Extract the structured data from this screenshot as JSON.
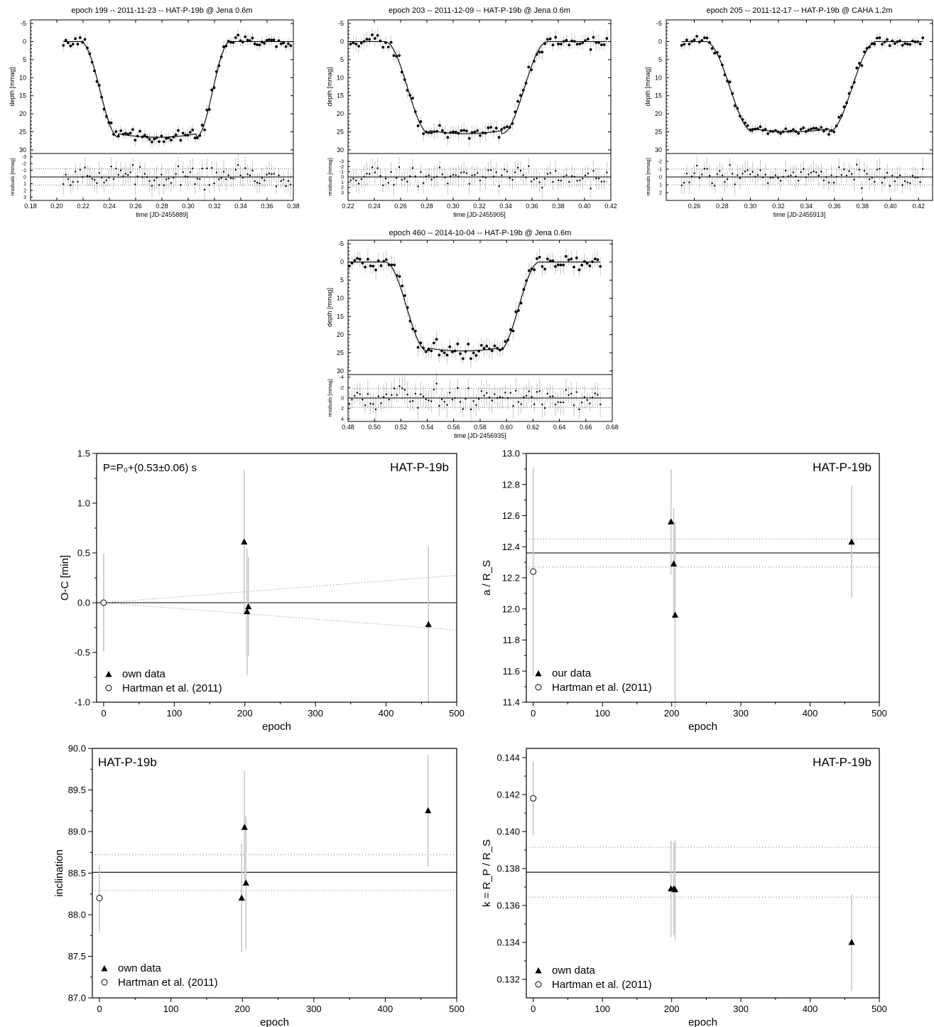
{
  "chart_data": [
    {
      "type": "scatter",
      "title": "epoch 199 -- 2011-11-23 -- HAT-P-19b @ Jena 0.6m",
      "xlabel": "time [JD-2455889]",
      "ylabel": "depth [mmag]",
      "residual_ylabel": "residuals [mmag]",
      "xlim": [
        0.18,
        0.38
      ],
      "ylim": [
        -6,
        31
      ],
      "residual_ylim": [
        -3.5,
        3.5
      ],
      "residual_band": 1.2,
      "xticks": [
        "0.18",
        "0.20",
        "0.22",
        "0.24",
        "0.26",
        "0.28",
        "0.30",
        "0.32",
        "0.34",
        "0.36",
        "0.38"
      ],
      "yticks": [
        "-5",
        "0",
        "5",
        "10",
        "15",
        "20",
        "25",
        "30"
      ],
      "residual_yticks": [
        "-3",
        "-2",
        "-1",
        "0",
        "1",
        "2",
        "3"
      ],
      "data_range": [
        0.205,
        0.378
      ],
      "transit": {
        "t1": 0.218,
        "t2": 0.247,
        "t3": 0.306,
        "t4": 0.332,
        "depth": 26.5
      },
      "grid": false
    },
    {
      "type": "scatter",
      "title": "epoch 203 -- 2011-12-09 -- HAT-P-19b @ Jena 0.6m",
      "xlabel": "time [JD-2455905]",
      "ylabel": "depth [mmag]",
      "residual_ylabel": "residuals [mmag]",
      "xlim": [
        0.22,
        0.42
      ],
      "ylim": [
        -6,
        31
      ],
      "residual_ylim": [
        -4.5,
        4.5
      ],
      "residual_band": 1.5,
      "xticks": [
        "0.22",
        "0.24",
        "0.26",
        "0.28",
        "0.30",
        "0.32",
        "0.34",
        "0.36",
        "0.38",
        "0.40",
        "0.42"
      ],
      "yticks": [
        "-5",
        "0",
        "5",
        "10",
        "15",
        "20",
        "25",
        "30"
      ],
      "residual_yticks": [
        "-3",
        "-2",
        "-1",
        "0",
        "1",
        "2",
        "3"
      ],
      "data_range": [
        0.222,
        0.417
      ],
      "transit": {
        "t1": 0.248,
        "t2": 0.282,
        "t3": 0.337,
        "t4": 0.372,
        "depth": 25.5
      },
      "grid": false
    },
    {
      "type": "scatter",
      "title": "epoch 205 -- 2011-12-17 -- HAT-P-19b @ CAHA 1.2m",
      "xlabel": "time [JD-2455913]",
      "ylabel": "depth [mmag]",
      "residual_ylabel": "residuals [mmag]",
      "xlim": [
        0.24,
        0.43
      ],
      "ylim": [
        -6,
        31
      ],
      "residual_ylim": [
        -3,
        3
      ],
      "residual_band": 1.0,
      "xticks": [
        "0.26",
        "0.28",
        "0.30",
        "0.32",
        "0.34",
        "0.36",
        "0.38",
        "0.40",
        "0.42"
      ],
      "yticks": [
        "-5",
        "0",
        "5",
        "10",
        "15",
        "20",
        "25",
        "30"
      ],
      "residual_yticks": [
        "-2",
        "-1",
        "0",
        "1",
        "2"
      ],
      "data_range": [
        0.251,
        0.423
      ],
      "transit": {
        "t1": 0.268,
        "t2": 0.302,
        "t3": 0.356,
        "t4": 0.39,
        "depth": 25.0
      },
      "grid": false
    },
    {
      "type": "scatter",
      "title": "epoch 460 -- 2014-10-04 -- HAT-P-19b @ Jena 0.6m",
      "xlabel": "time [JD-2456935]",
      "ylabel": "depth [mmag]",
      "residual_ylabel": "residuals [mmag]",
      "xlim": [
        0.48,
        0.68
      ],
      "ylim": [
        -6,
        31
      ],
      "residual_ylim": [
        -4.5,
        4.5
      ],
      "residual_band": 1.8,
      "xticks": [
        "0.48",
        "0.50",
        "0.52",
        "0.54",
        "0.56",
        "0.58",
        "0.60",
        "0.62",
        "0.64",
        "0.66",
        "0.68"
      ],
      "yticks": [
        "-5",
        "0",
        "5",
        "10",
        "15",
        "20",
        "25",
        "30"
      ],
      "residual_yticks": [
        "-4",
        "-2",
        "0",
        "2",
        "4"
      ],
      "data_range": [
        0.481,
        0.671
      ],
      "transit": {
        "t1": 0.508,
        "t2": 0.54,
        "t3": 0.594,
        "t4": 0.625,
        "depth": 24.5
      },
      "grid": false
    },
    {
      "type": "scatter",
      "title": "",
      "object_label": "HAT-P-19b",
      "note": "P=P₀+(0.53±0.06) s",
      "xlabel": "epoch",
      "ylabel": "O-C [min]",
      "xlim": [
        -10,
        500
      ],
      "ylim": [
        -1.0,
        1.5
      ],
      "xticks": [
        0,
        100,
        200,
        300,
        400,
        500
      ],
      "yticks": [
        "-1.0",
        "-0.5",
        "0.0",
        "0.5",
        "1.0",
        "1.5"
      ],
      "fit": {
        "type": "linear",
        "value": 0.0,
        "band_slope": 0.00055
      },
      "series": [
        {
          "name": "own data",
          "marker": "triangle",
          "points": [
            {
              "x": 199,
              "y": 0.61,
              "err": 0.72
            },
            {
              "x": 203,
              "y": -0.09,
              "err": 0.64
            },
            {
              "x": 205,
              "y": -0.04,
              "err": 0.5
            },
            {
              "x": 460,
              "y": -0.22,
              "err": 0.79
            }
          ]
        },
        {
          "name": "Hartman et al. (2011)",
          "marker": "circle",
          "points": [
            {
              "x": 0,
              "y": 0.0,
              "err": 0.49
            }
          ]
        }
      ],
      "legend": "bottom-left",
      "grid": false
    },
    {
      "type": "scatter",
      "title": "",
      "object_label": "HAT-P-19b",
      "xlabel": "epoch",
      "ylabel": "a / R_S",
      "xlim": [
        -10,
        500
      ],
      "ylim": [
        11.4,
        13.0
      ],
      "xticks": [
        0,
        100,
        200,
        300,
        400,
        500
      ],
      "yticks": [
        "11.4",
        "11.6",
        "11.8",
        "12.0",
        "12.2",
        "12.4",
        "12.6",
        "12.8",
        "13.0"
      ],
      "fit": {
        "type": "constant",
        "value": 12.36,
        "band": [
          12.27,
          12.45
        ]
      },
      "series": [
        {
          "name": "our data",
          "marker": "triangle",
          "points": [
            {
              "x": 199,
              "y": 12.56,
              "err": 0.34
            },
            {
              "x": 203,
              "y": 12.29,
              "err": 0.36
            },
            {
              "x": 205,
              "y": 11.96,
              "err": 0.6
            },
            {
              "x": 460,
              "y": 12.43,
              "err": 0.36
            }
          ]
        },
        {
          "name": "Hartman et al. (2011)",
          "marker": "circle",
          "points": [
            {
              "x": 0,
              "y": 12.24,
              "err": 0.67
            }
          ]
        }
      ],
      "legend": "bottom-left",
      "grid": false
    },
    {
      "type": "scatter",
      "title": "",
      "object_label": "HAT-P-19b",
      "xlabel": "epoch",
      "ylabel": "inclination",
      "xlim": [
        -10,
        500
      ],
      "ylim": [
        87.0,
        90.0
      ],
      "xticks": [
        0,
        100,
        200,
        300,
        400,
        500
      ],
      "yticks": [
        "87.0",
        "87.5",
        "88.0",
        "88.5",
        "89.0",
        "89.5",
        "90.0"
      ],
      "fit": {
        "type": "constant",
        "value": 88.51,
        "band": [
          88.29,
          88.72
        ]
      },
      "series": [
        {
          "name": "own data",
          "marker": "triangle",
          "points": [
            {
              "x": 199,
              "y": 88.2,
              "err": 0.65
            },
            {
              "x": 203,
              "y": 89.05,
              "err": 0.68
            },
            {
              "x": 205,
              "y": 88.38,
              "err": 0.8
            },
            {
              "x": 460,
              "y": 89.25,
              "err": 0.67
            }
          ]
        },
        {
          "name": "Hartman et al. (2011)",
          "marker": "circle",
          "points": [
            {
              "x": 0,
              "y": 88.2,
              "err": 0.4
            }
          ]
        }
      ],
      "legend": "bottom-left",
      "grid": false
    },
    {
      "type": "scatter",
      "title": "",
      "object_label": "HAT-P-19b",
      "xlabel": "epoch",
      "ylabel": "k = R_P / R_S",
      "xlim": [
        -10,
        500
      ],
      "ylim": [
        0.131,
        0.1445
      ],
      "xticks": [
        0,
        100,
        200,
        300,
        400,
        500
      ],
      "yticks": [
        "0.132",
        "0.134",
        "0.136",
        "0.138",
        "0.140",
        "0.142",
        "0.144"
      ],
      "fit": {
        "type": "constant",
        "value": 0.1378,
        "band": [
          0.13645,
          0.13915
        ]
      },
      "series": [
        {
          "name": "own data",
          "marker": "triangle",
          "points": [
            {
              "x": 199,
              "y": 0.1369,
              "err": 0.0026
            },
            {
              "x": 203,
              "y": 0.1369,
              "err": 0.0025
            },
            {
              "x": 205,
              "y": 0.13685,
              "err": 0.0027
            },
            {
              "x": 460,
              "y": 0.134,
              "err": 0.0026
            }
          ]
        },
        {
          "name": "Hartman et al. (2011)",
          "marker": "circle",
          "points": [
            {
              "x": 0,
              "y": 0.1418,
              "err": 0.002
            }
          ]
        }
      ],
      "legend": "bottom-left",
      "grid": false
    }
  ]
}
